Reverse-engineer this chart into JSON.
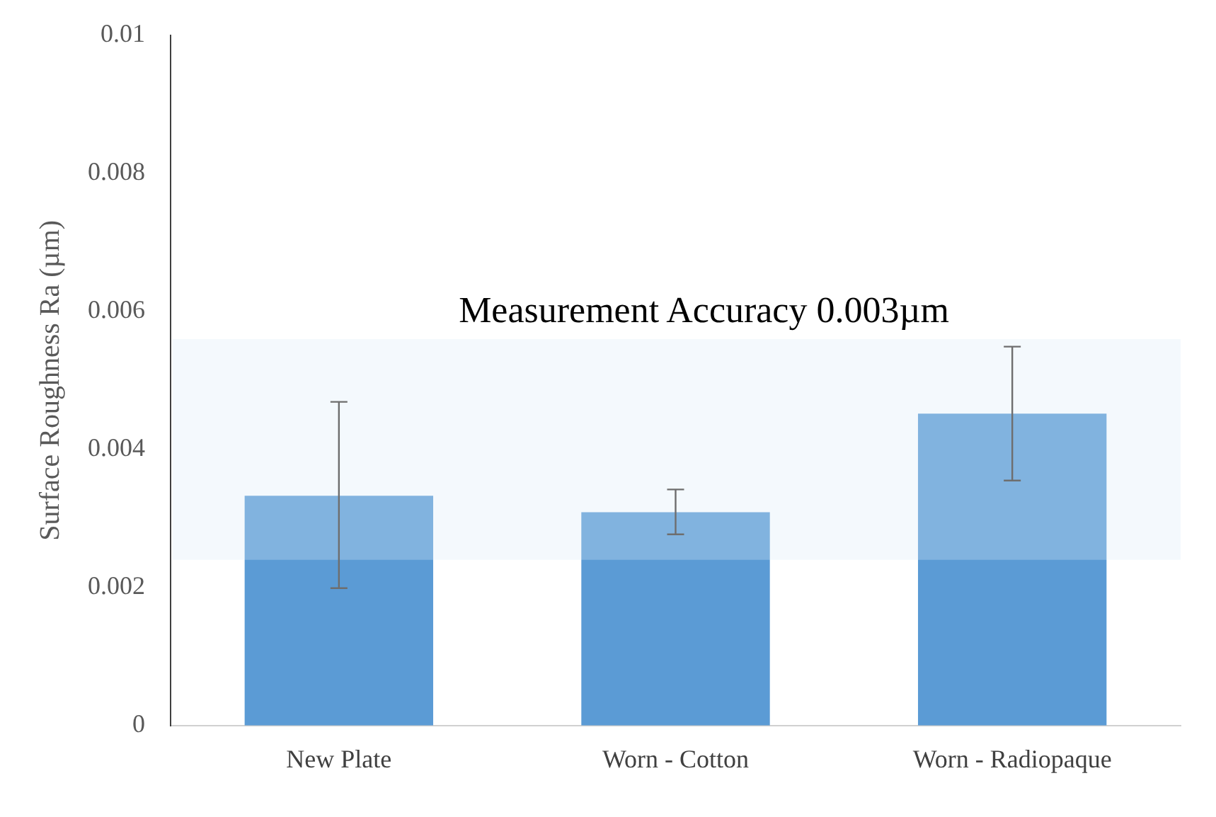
{
  "chart_data": {
    "type": "bar",
    "ylabel": "Surface Roughness Ra (µm)",
    "categories": [
      "New Plate",
      "Worn - Cotton",
      "Worn - Radiopaque"
    ],
    "values": [
      0.00333,
      0.00309,
      0.00452
    ],
    "color": "#5b9bd5",
    "errors": [
      [
        0.00199,
        0.00469
      ],
      [
        0.00277,
        0.00342
      ],
      [
        0.00355,
        0.00549
      ]
    ],
    "ylim": [
      0,
      0.01
    ],
    "yticks": [
      0,
      0.002,
      0.004,
      0.006,
      0.008,
      0.01
    ],
    "grid": false,
    "legend": false,
    "bands": [
      {
        "axis": "y",
        "from": 0.0024,
        "to": 0.0056,
        "label": "Measurement Accuracy 0.003µm",
        "color": "#dbeaf7"
      }
    ]
  }
}
